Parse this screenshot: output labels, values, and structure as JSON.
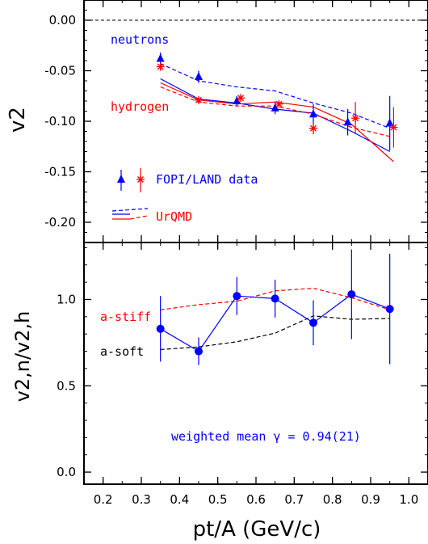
{
  "chart_data": [
    {
      "type": "scatter",
      "panel": "top",
      "ylabel": "v2",
      "ylim": [
        -0.22,
        0.02
      ],
      "xlim": [
        0.15,
        1.05
      ],
      "yticks": [
        "0.00",
        "-0.05",
        "-0.10",
        "-0.15",
        "-0.20"
      ],
      "ytick_values": [
        0.0,
        -0.05,
        -0.1,
        -0.15,
        -0.2
      ],
      "reference_line": {
        "y": 0.0,
        "style": "dashed"
      },
      "annotations": {
        "neutrons": "neutrons",
        "hydrogen": "hydrogen"
      },
      "legend": {
        "data_label": "FOPI/LAND data",
        "model_label": "UrQMD"
      },
      "series": [
        {
          "name": "neutrons",
          "kind": "data",
          "marker": "triangle",
          "color": "#0000ff",
          "x": [
            0.35,
            0.45,
            0.55,
            0.65,
            0.75,
            0.84,
            0.95
          ],
          "y": [
            -0.038,
            -0.056,
            -0.08,
            -0.087,
            -0.093,
            -0.101,
            -0.102
          ],
          "err": [
            0.006,
            0.006,
            0.005,
            0.006,
            0.01,
            0.013,
            0.027
          ]
        },
        {
          "name": "hydrogen",
          "kind": "data",
          "marker": "asterisk",
          "color": "#ff0000",
          "x": [
            0.35,
            0.45,
            0.56,
            0.66,
            0.75,
            0.86,
            0.96
          ],
          "y": [
            -0.046,
            -0.079,
            -0.077,
            -0.083,
            -0.107,
            -0.097,
            -0.106
          ],
          "err": [
            0.003,
            0.003,
            0.003,
            0.003,
            0.006,
            0.016,
            0.02
          ]
        },
        {
          "name": "neutrons UrQMD a-soft",
          "kind": "model",
          "color": "#0000ff",
          "dash": true,
          "x": [
            0.35,
            0.45,
            0.55,
            0.65,
            0.75,
            0.85,
            0.95
          ],
          "y": [
            -0.043,
            -0.06,
            -0.066,
            -0.07,
            -0.082,
            -0.092,
            -0.107
          ]
        },
        {
          "name": "neutrons UrQMD a-stiff",
          "kind": "model",
          "color": "#0000ff",
          "dash": false,
          "x": [
            0.35,
            0.45,
            0.55,
            0.65,
            0.75,
            0.85,
            0.95
          ],
          "y": [
            -0.058,
            -0.078,
            -0.082,
            -0.088,
            -0.092,
            -0.11,
            -0.13
          ]
        },
        {
          "name": "hydrogen UrQMD a-soft",
          "kind": "model",
          "color": "#ff0000",
          "dash": true,
          "x": [
            0.35,
            0.45,
            0.55,
            0.65,
            0.75,
            0.85,
            0.95
          ],
          "y": [
            -0.066,
            -0.081,
            -0.085,
            -0.085,
            -0.093,
            -0.106,
            -0.115
          ]
        },
        {
          "name": "hydrogen UrQMD a-stiff",
          "kind": "model",
          "color": "#ff0000",
          "dash": false,
          "x": [
            0.35,
            0.45,
            0.55,
            0.65,
            0.75,
            0.85,
            0.96
          ],
          "y": [
            -0.062,
            -0.079,
            -0.083,
            -0.081,
            -0.086,
            -0.103,
            -0.14
          ]
        }
      ]
    },
    {
      "type": "scatter",
      "panel": "bottom",
      "xlabel": "pt/A (GeV/c)",
      "ylabel": "v2,n/v2,h",
      "xlim": [
        0.15,
        1.05
      ],
      "ylim": [
        -0.07,
        1.33
      ],
      "xticks": [
        "0.2",
        "0.3",
        "0.4",
        "0.5",
        "0.6",
        "0.7",
        "0.8",
        "0.9",
        "1.0"
      ],
      "xtick_values": [
        0.2,
        0.3,
        0.4,
        0.5,
        0.6,
        0.7,
        0.8,
        0.9,
        1.0
      ],
      "yticks": [
        "0.0",
        "0.5",
        "1.0"
      ],
      "ytick_values": [
        0.0,
        0.5,
        1.0
      ],
      "annotations": {
        "stiff": "a-stiff",
        "soft": "a-soft",
        "mean": "weighted mean γ = 0.94(21)"
      },
      "series": [
        {
          "name": "ratio",
          "kind": "data",
          "marker": "circle",
          "color": "#0000ff",
          "x": [
            0.35,
            0.45,
            0.55,
            0.65,
            0.75,
            0.85,
            0.95
          ],
          "y": [
            0.83,
            0.7,
            1.02,
            1.005,
            0.865,
            1.03,
            0.945
          ],
          "err": [
            0.19,
            0.08,
            0.11,
            0.11,
            0.13,
            0.26,
            0.32
          ]
        },
        {
          "name": "a-stiff",
          "kind": "model",
          "color": "#ff0000",
          "dash": true,
          "x": [
            0.35,
            0.45,
            0.55,
            0.65,
            0.75,
            0.85,
            0.95
          ],
          "y": [
            0.94,
            0.97,
            0.99,
            1.05,
            1.065,
            1.01,
            0.94
          ]
        },
        {
          "name": "a-soft",
          "kind": "model",
          "color": "#000000",
          "dash": true,
          "x": [
            0.35,
            0.45,
            0.55,
            0.65,
            0.75,
            0.85,
            0.95
          ],
          "y": [
            0.71,
            0.725,
            0.755,
            0.805,
            0.905,
            0.885,
            0.89
          ]
        }
      ]
    }
  ]
}
